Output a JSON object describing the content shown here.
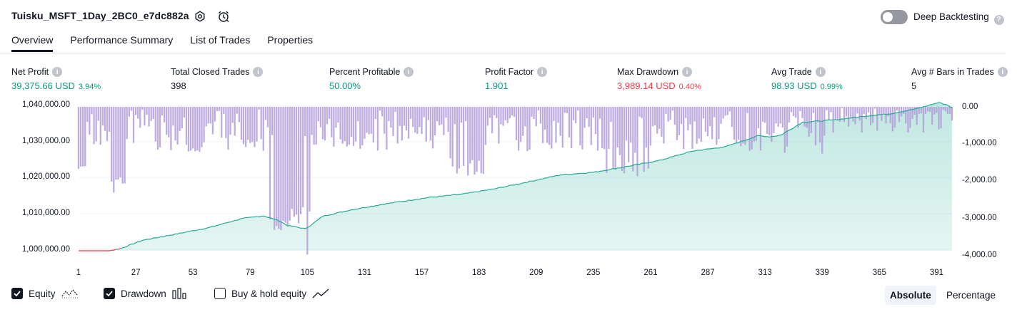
{
  "header": {
    "title": "Tuisku_MSFT_1Day_2BC0_e7dc882a",
    "deep_backtesting_label": "Deep Backtesting",
    "deep_backtesting_on": false
  },
  "tabs": [
    {
      "label": "Overview",
      "active": true
    },
    {
      "label": "Performance Summary",
      "active": false
    },
    {
      "label": "List of Trades",
      "active": false
    },
    {
      "label": "Properties",
      "active": false
    }
  ],
  "stats": {
    "net_profit": {
      "label": "Net Profit",
      "value": "39,375.66 USD",
      "pct": "3.94%"
    },
    "total_closed_trades": {
      "label": "Total Closed Trades",
      "value": "398"
    },
    "percent_profitable": {
      "label": "Percent Profitable",
      "value": "50.00%"
    },
    "profit_factor": {
      "label": "Profit Factor",
      "value": "1.901"
    },
    "max_drawdown": {
      "label": "Max Drawdown",
      "value": "3,989.14 USD",
      "pct": "0.40%"
    },
    "avg_trade": {
      "label": "Avg Trade",
      "value": "98.93 USD",
      "pct": "0.99%"
    },
    "avg_bars": {
      "label": "Avg # Bars in Trades",
      "value": "5"
    }
  },
  "chart_data": {
    "type": "area",
    "left_axis_ticks": [
      "1,040,000.00",
      "1,030,000.00",
      "1,020,000.00",
      "1,010,000.00",
      "1,000,000.00"
    ],
    "right_axis_ticks": [
      "0.00",
      "-1,000.00",
      "-2,000.00",
      "-3,000.00",
      "-4,000.00"
    ],
    "x_ticks": [
      "1",
      "27",
      "53",
      "79",
      "105",
      "131",
      "157",
      "183",
      "209",
      "235",
      "261",
      "287",
      "313",
      "339",
      "365",
      "391"
    ],
    "equity_ylim": [
      997000,
      1040000
    ],
    "drawdown_ylim": [
      -4000,
      0
    ],
    "trades": 398,
    "equity_start": 1000000,
    "equity_end": 1039375.66,
    "max_drawdown": -3989.14,
    "equity_keypoints": [
      [
        1,
        999600
      ],
      [
        3,
        998400
      ],
      [
        5,
        998200
      ],
      [
        8,
        999700
      ],
      [
        10,
        998900
      ],
      [
        14,
        999500
      ],
      [
        20,
        1000200
      ],
      [
        30,
        1002500
      ],
      [
        45,
        1004200
      ],
      [
        60,
        1006000
      ],
      [
        75,
        1008500
      ],
      [
        85,
        1009300
      ],
      [
        92,
        1008000
      ],
      [
        96,
        1006600
      ],
      [
        100,
        1006200
      ],
      [
        104,
        1005700
      ],
      [
        107,
        1006900
      ],
      [
        112,
        1009200
      ],
      [
        125,
        1011000
      ],
      [
        140,
        1012600
      ],
      [
        160,
        1014400
      ],
      [
        175,
        1015300
      ],
      [
        190,
        1016800
      ],
      [
        205,
        1018700
      ],
      [
        220,
        1020700
      ],
      [
        235,
        1021400
      ],
      [
        250,
        1023000
      ],
      [
        265,
        1024700
      ],
      [
        280,
        1027300
      ],
      [
        295,
        1028500
      ],
      [
        310,
        1031600
      ],
      [
        315,
        1031300
      ],
      [
        320,
        1031700
      ],
      [
        330,
        1035300
      ],
      [
        345,
        1036000
      ],
      [
        358,
        1037000
      ],
      [
        370,
        1037700
      ],
      [
        382,
        1039100
      ],
      [
        392,
        1040800
      ],
      [
        396,
        1040100
      ],
      [
        398,
        1039375.66
      ]
    ],
    "colors": {
      "equity_line": "#22ab94",
      "equity_fill": "#22ab94",
      "drawdown_bars": "#b39ddb",
      "negative_line": "#f23645"
    }
  },
  "legend": {
    "equity": {
      "label": "Equity",
      "checked": true
    },
    "drawdown": {
      "label": "Drawdown",
      "checked": true
    },
    "buy_hold": {
      "label": "Buy & hold equity",
      "checked": false
    }
  },
  "scale": {
    "absolute": "Absolute",
    "percentage": "Percentage",
    "selected": "Absolute"
  }
}
